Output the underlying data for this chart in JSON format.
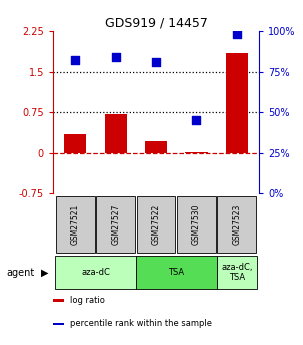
{
  "title": "GDS919 / 14457",
  "samples": [
    "GSM27521",
    "GSM27527",
    "GSM27522",
    "GSM27530",
    "GSM27523"
  ],
  "log_ratio": [
    0.35,
    0.72,
    0.22,
    0.02,
    1.85
  ],
  "percentile_rank": [
    82,
    84,
    81,
    45,
    98
  ],
  "bar_color": "#cc0000",
  "dot_color": "#0000cc",
  "ylim_left": [
    -0.75,
    2.25
  ],
  "ylim_right": [
    0,
    100
  ],
  "yticks_left": [
    -0.75,
    0,
    0.75,
    1.5,
    2.25
  ],
  "yticks_right": [
    0,
    25,
    50,
    75,
    100
  ],
  "ytick_labels_left": [
    "-0.75",
    "0",
    "0.75",
    "1.5",
    "2.25"
  ],
  "ytick_labels_right": [
    "0%",
    "25%",
    "50%",
    "75%",
    "100%"
  ],
  "hline_dashed_red": 0,
  "hlines_dotted": [
    0.75,
    1.5
  ],
  "agent_groups": [
    {
      "label": "aza-dC",
      "color": "#bbffbb",
      "span": [
        0,
        2
      ]
    },
    {
      "label": "TSA",
      "color": "#55dd55",
      "span": [
        2,
        4
      ]
    },
    {
      "label": "aza-dC,\nTSA",
      "color": "#bbffbb",
      "span": [
        4,
        5
      ]
    }
  ],
  "legend_items": [
    {
      "color": "#cc0000",
      "label": "log ratio"
    },
    {
      "color": "#0000cc",
      "label": "percentile rank within the sample"
    }
  ],
  "sample_box_color": "#cccccc",
  "background_color": "#ffffff"
}
